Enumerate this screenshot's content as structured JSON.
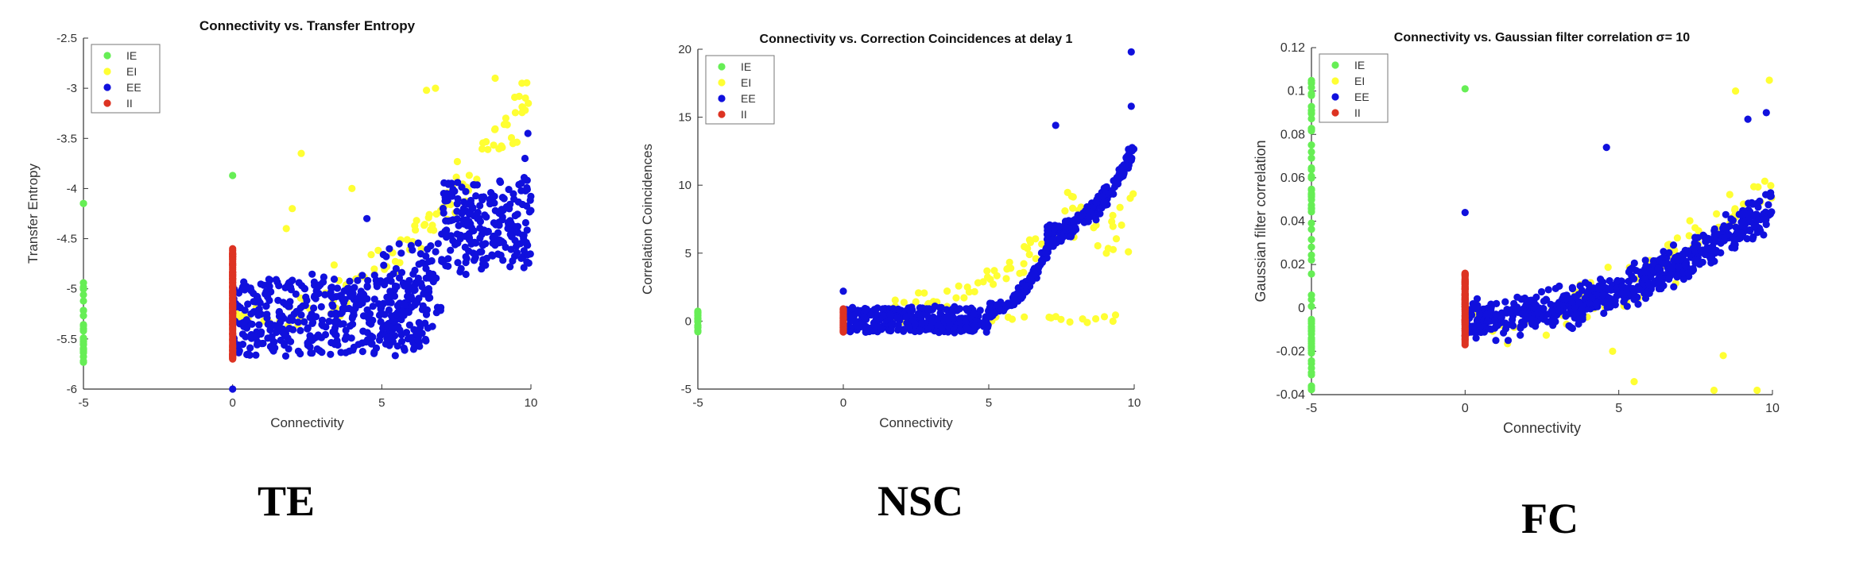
{
  "colors": {
    "IE": "#66ee55",
    "EI": "#ffff33",
    "EE": "#1010dd",
    "II": "#dd3322"
  },
  "captions": [
    "TE",
    "NSC",
    "FC"
  ],
  "chart_data": [
    {
      "type": "scatter",
      "title": "Connectivity vs. Transfer Entropy",
      "xlabel": "Connectivity",
      "ylabel": "Transfer Entropy",
      "xlim": [
        -5,
        10
      ],
      "ylim": [
        -6,
        -2.5
      ],
      "xticks": [
        -5,
        0,
        5,
        10
      ],
      "yticks": [
        -6,
        -5.5,
        -5,
        -4.5,
        -4,
        -3.5,
        -3,
        -2.5
      ],
      "legend": {
        "position": "top-left",
        "entries": [
          "IE",
          "EI",
          "EE",
          "II"
        ]
      },
      "grid": false,
      "series": [
        {
          "name": "IE",
          "clusters": [
            {
              "x": [
                -5,
                -5
              ],
              "y": [
                -5.75,
                -4.8
              ],
              "n": 28
            },
            {
              "x": [
                -5,
                -5
              ],
              "y": [
                -4.15,
                -4.1
              ],
              "n": 2
            }
          ],
          "points": []
        },
        {
          "name": "EI",
          "clusters": [
            {
              "x": [
                0,
                10
              ],
              "y": [
                -5.5,
                -2.9
              ],
              "trend": "up",
              "n": 110,
              "spread": 0.35
            }
          ],
          "points": [
            [
              2.3,
              -3.65
            ],
            [
              6.8,
              -3.0
            ],
            [
              6.5,
              -3.02
            ],
            [
              8.8,
              -2.9
            ],
            [
              9.7,
              -2.95
            ],
            [
              1.8,
              -4.4
            ],
            [
              4.0,
              -4.0
            ],
            [
              2.0,
              -4.2
            ]
          ]
        },
        {
          "name": "EE",
          "clusters": [
            {
              "x": [
                0,
                6.5
              ],
              "y": [
                -5.65,
                -4.9
              ],
              "n": 420,
              "spread": 0.18
            },
            {
              "x": [
                5.0,
                7.0
              ],
              "y": [
                -5.4,
                -4.5
              ],
              "n": 80,
              "spread": 0.2
            },
            {
              "x": [
                7.0,
                10
              ],
              "y": [
                -4.8,
                -3.9
              ],
              "n": 220,
              "spread": 0.22
            }
          ],
          "points": [
            [
              0,
              -6.0
            ],
            [
              9.9,
              -3.45
            ],
            [
              9.8,
              -3.7
            ],
            [
              4.5,
              -4.3
            ]
          ]
        },
        {
          "name": "II",
          "clusters": [
            {
              "x": [
                0,
                0
              ],
              "y": [
                -5.7,
                -4.6
              ],
              "n": 60
            }
          ],
          "points": []
        },
        {
          "name": "IE",
          "clusters": [],
          "points": [
            [
              0,
              -3.87
            ]
          ]
        }
      ]
    },
    {
      "type": "scatter",
      "title": "Connectivity vs. Correction Coincidences at delay 1",
      "xlabel": "Connectivity",
      "ylabel": "Correlation Coincidences",
      "xlim": [
        -5,
        10
      ],
      "ylim": [
        -5,
        20
      ],
      "xticks": [
        -5,
        0,
        5,
        10
      ],
      "yticks": [
        -5,
        0,
        5,
        10,
        15,
        20
      ],
      "legend": {
        "position": "top-left",
        "entries": [
          "IE",
          "EI",
          "EE",
          "II"
        ]
      },
      "grid": false,
      "series": [
        {
          "name": "IE",
          "clusters": [
            {
              "x": [
                -5,
                -5
              ],
              "y": [
                -0.9,
                0.8
              ],
              "n": 18
            }
          ],
          "points": []
        },
        {
          "name": "EI",
          "clusters": [
            {
              "x": [
                1.5,
                7.5
              ],
              "y": [
                0.5,
                7.5
              ],
              "trend": "up",
              "n": 60,
              "spread": 1.6
            },
            {
              "x": [
                5,
                9.5
              ],
              "y": [
                -0.1,
                0.4
              ],
              "n": 16,
              "spread": 0.2
            },
            {
              "x": [
                7.5,
                10
              ],
              "y": [
                5,
                10
              ],
              "n": 25,
              "spread": 1.2
            }
          ],
          "points": [
            [
              9.8,
              5.1
            ]
          ]
        },
        {
          "name": "EE",
          "clusters": [
            {
              "x": [
                0,
                5.0
              ],
              "y": [
                -0.8,
                1.0
              ],
              "n": 330,
              "spread": 0.4
            },
            {
              "x": [
                5.0,
                7.2
              ],
              "y": [
                0.5,
                6.5
              ],
              "trend": "up",
              "n": 130,
              "spread": 0.8
            },
            {
              "x": [
                7.0,
                10
              ],
              "y": [
                6,
                13
              ],
              "trend": "up",
              "n": 190,
              "spread": 1.2
            }
          ],
          "points": [
            [
              9.9,
              19.8
            ],
            [
              7.3,
              14.4
            ],
            [
              9.9,
              15.8
            ],
            [
              0,
              2.2
            ]
          ]
        },
        {
          "name": "II",
          "clusters": [
            {
              "x": [
                0,
                0
              ],
              "y": [
                -0.8,
                0.9
              ],
              "n": 22
            }
          ],
          "points": []
        }
      ]
    },
    {
      "type": "scatter",
      "title": "Connectivity vs. Gaussian filter correlation σ= 10",
      "xlabel": "Connectivity",
      "ylabel": "Gaussian filter correlation",
      "xlim": [
        -5,
        10
      ],
      "ylim": [
        -0.04,
        0.12
      ],
      "xticks": [
        -5,
        0,
        5,
        10
      ],
      "yticks": [
        -0.04,
        -0.02,
        0,
        0.02,
        0.04,
        0.06,
        0.08,
        0.1,
        0.12
      ],
      "legend": {
        "position": "top-left",
        "entries": [
          "IE",
          "EI",
          "EE",
          "II"
        ]
      },
      "grid": false,
      "series": [
        {
          "name": "IE",
          "clusters": [
            {
              "x": [
                -5,
                -5
              ],
              "y": [
                -0.038,
                0.105
              ],
              "n": 70
            }
          ],
          "points": [
            [
              0,
              0.101
            ]
          ]
        },
        {
          "name": "EI",
          "clusters": [
            {
              "x": [
                0,
                10
              ],
              "y": [
                -0.01,
                0.06
              ],
              "trend": "up",
              "n": 90,
              "spread": 0.016
            }
          ],
          "points": [
            [
              9.9,
              0.105
            ],
            [
              8.8,
              0.1
            ],
            [
              8.4,
              -0.022
            ],
            [
              8.1,
              -0.038
            ],
            [
              9.5,
              -0.038
            ],
            [
              5.5,
              -0.034
            ],
            [
              4.8,
              -0.02
            ]
          ]
        },
        {
          "name": "EE",
          "clusters": [
            {
              "x": [
                0,
                10
              ],
              "y": [
                -0.008,
                0.05
              ],
              "trend": "up",
              "n": 700,
              "spread": 0.012
            }
          ],
          "points": [
            [
              9.8,
              0.09
            ],
            [
              9.2,
              0.087
            ],
            [
              4.6,
              0.074
            ],
            [
              0,
              0.044
            ],
            [
              1.0,
              -0.015
            ],
            [
              1.4,
              -0.015
            ]
          ]
        },
        {
          "name": "II",
          "clusters": [
            {
              "x": [
                0,
                0
              ],
              "y": [
                -0.017,
                0.016
              ],
              "n": 40
            }
          ],
          "points": []
        }
      ]
    }
  ]
}
